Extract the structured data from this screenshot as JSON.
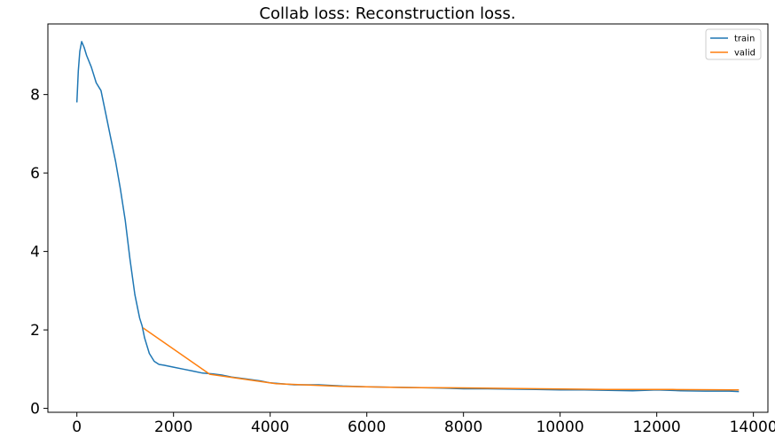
{
  "chart_data": {
    "type": "line",
    "title": "Collab loss: Reconstruction loss.",
    "xlabel": "",
    "ylabel": "",
    "xlim": [
      -600,
      14300
    ],
    "ylim": [
      -0.1,
      9.8
    ],
    "x_ticks": [
      0,
      2000,
      4000,
      6000,
      8000,
      10000,
      12000,
      14000
    ],
    "y_ticks": [
      0,
      2,
      4,
      6,
      8
    ],
    "grid": false,
    "legend_position": "top-right",
    "series": [
      {
        "name": "train",
        "color": "#1f77b4",
        "x": [
          0,
          30,
          60,
          100,
          150,
          200,
          300,
          400,
          500,
          600,
          700,
          800,
          900,
          1000,
          1100,
          1200,
          1300,
          1350,
          1400,
          1500,
          1600,
          1700,
          1800,
          2000,
          2200,
          2400,
          2600,
          2800,
          3000,
          3200,
          3500,
          3800,
          4000,
          4500,
          5000,
          5500,
          6000,
          6500,
          7000,
          7500,
          8000,
          8500,
          9000,
          9500,
          10000,
          10500,
          11000,
          11500,
          12000,
          12500,
          13000,
          13500,
          13700
        ],
        "y": [
          7.8,
          8.6,
          9.1,
          9.35,
          9.2,
          9.0,
          8.7,
          8.3,
          8.1,
          7.5,
          6.9,
          6.3,
          5.6,
          4.8,
          3.8,
          2.9,
          2.3,
          2.1,
          1.8,
          1.4,
          1.2,
          1.12,
          1.1,
          1.05,
          1.0,
          0.95,
          0.9,
          0.88,
          0.85,
          0.8,
          0.75,
          0.7,
          0.65,
          0.6,
          0.6,
          0.57,
          0.55,
          0.54,
          0.53,
          0.52,
          0.5,
          0.5,
          0.49,
          0.48,
          0.47,
          0.47,
          0.46,
          0.45,
          0.47,
          0.45,
          0.44,
          0.44,
          0.43
        ]
      },
      {
        "name": "valid",
        "color": "#ff7f0e",
        "x": [
          1370,
          2750,
          4120,
          5480,
          6850,
          8220,
          9590,
          10960,
          12330,
          13700
        ],
        "y": [
          2.05,
          0.87,
          0.63,
          0.56,
          0.53,
          0.52,
          0.5,
          0.48,
          0.48,
          0.47
        ]
      }
    ]
  }
}
